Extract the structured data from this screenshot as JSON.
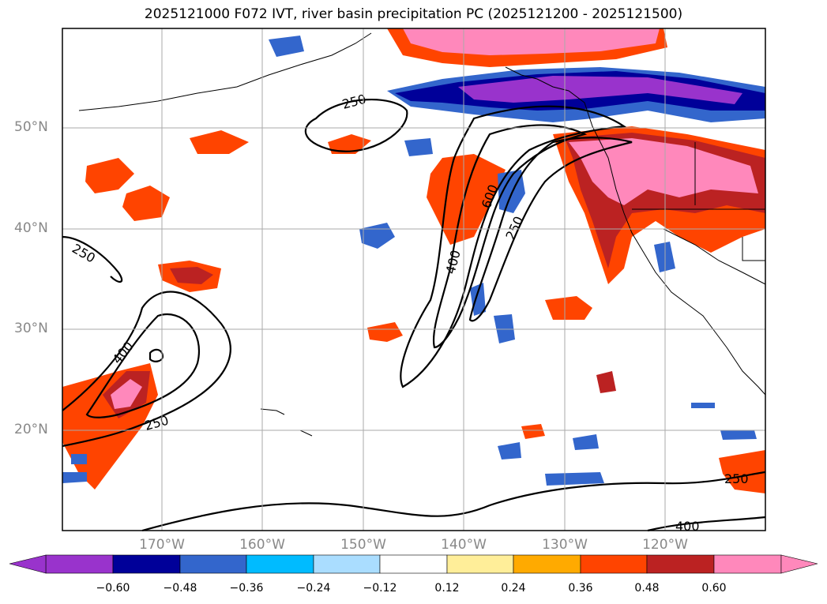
{
  "title": "2025121000 F072 IVT, river basin precipitation PC (2025121200 - 2025121500)",
  "lat_labels": [
    "50°N",
    "40°N",
    "30°N",
    "20°N"
  ],
  "lon_labels": [
    "170°W",
    "160°W",
    "150°W",
    "140°W",
    "130°W",
    "120°W"
  ],
  "contour_labels": [
    "250",
    "250",
    "400",
    "250",
    "600",
    "400",
    "250",
    "250",
    "400"
  ],
  "colorbar": {
    "ticks": [
      "−0.60",
      "−0.48",
      "−0.36",
      "−0.24",
      "−0.12",
      "0.12",
      "0.24",
      "0.36",
      "0.48",
      "0.60"
    ],
    "colors": [
      "#9933cc",
      "#000099",
      "#3366cc",
      "#00bbff",
      "#aaddff",
      "#ffffff",
      "#ffee99",
      "#ffaa00",
      "#ff4400",
      "#bb2222",
      "#ff88bb"
    ]
  }
}
